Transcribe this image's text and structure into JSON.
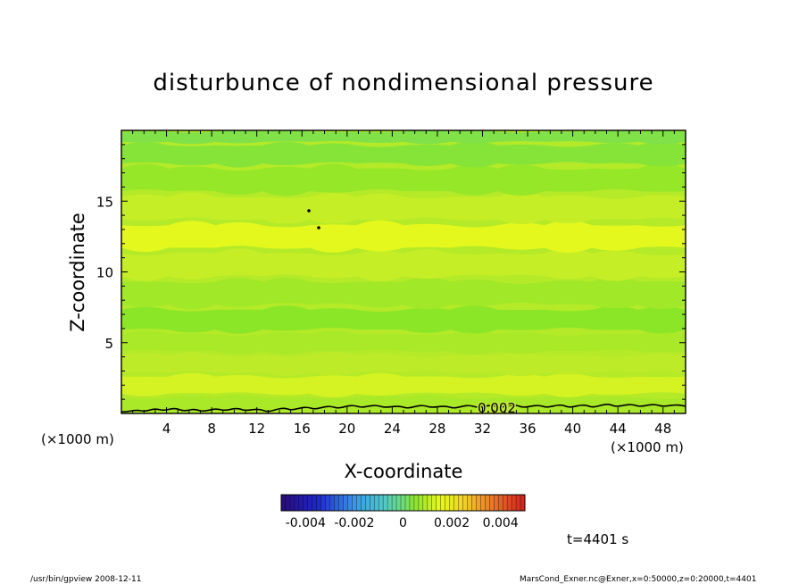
{
  "chart_data": {
    "type": "heatmap",
    "title": "disturbunce of nondimensional pressure",
    "xlabel": "X-coordinate",
    "ylabel": "Z-coordinate",
    "x_unit": "(×1000 m)",
    "y_unit": "(×1000 m)",
    "xlim": [
      0,
      50
    ],
    "ylim": [
      0,
      20
    ],
    "x_ticks": [
      4,
      8,
      12,
      16,
      20,
      24,
      28,
      32,
      36,
      40,
      44,
      48
    ],
    "y_ticks": [
      5,
      10,
      15
    ],
    "contour_label": "0.002",
    "colorbar": {
      "range": [
        -0.005,
        0.005
      ],
      "tick_values": [
        -0.004,
        -0.002,
        0,
        0.002,
        0.004
      ],
      "tick_labels": [
        "-0.004",
        "-0.002",
        "0",
        "0.002",
        "0.004"
      ]
    },
    "field_bands": [
      {
        "z": 0.5,
        "value": 0.0008
      },
      {
        "z": 2.0,
        "value": 0.0013
      },
      {
        "z": 3.5,
        "value": 0.001
      },
      {
        "z": 5.0,
        "value": 0.0008
      },
      {
        "z": 6.5,
        "value": 0.0005
      },
      {
        "z": 8.5,
        "value": 0.0007
      },
      {
        "z": 10.5,
        "value": 0.0011
      },
      {
        "z": 12.5,
        "value": 0.0015
      },
      {
        "z": 14.5,
        "value": 0.0011
      },
      {
        "z": 16.5,
        "value": 0.0006
      },
      {
        "z": 18.5,
        "value": 0.0004
      },
      {
        "z": 19.7,
        "value": 0.0003
      }
    ],
    "time_label": "t=4401 s"
  },
  "footer": {
    "left": "/usr/bin/gpview   2008-12-11",
    "right": "MarsCond_Exner.nc@Exner,x=0:50000,z=0:20000,t=4401"
  },
  "colors": {
    "background": "#ffffff",
    "low": "#1a0a8c",
    "mid": "#b4e63c",
    "high": "#d8281e"
  }
}
